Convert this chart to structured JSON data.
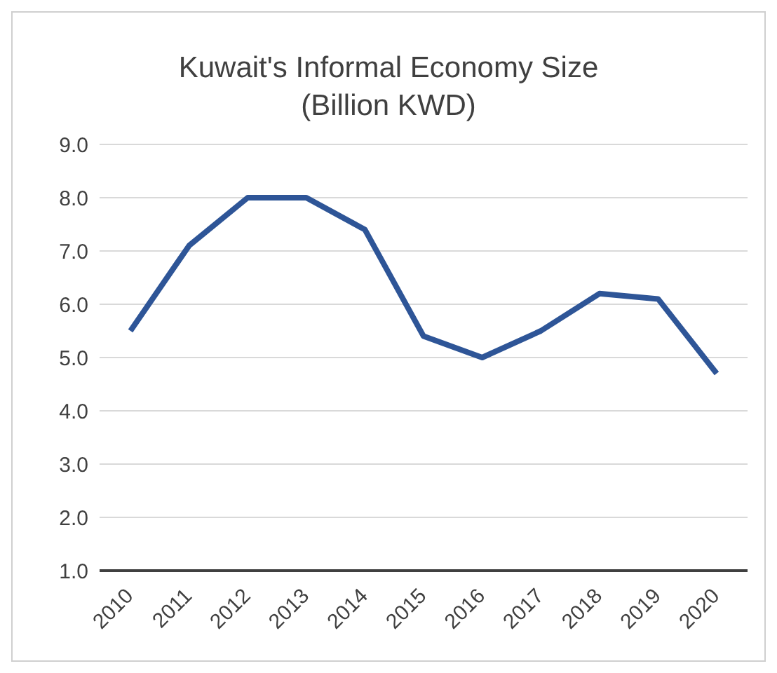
{
  "chart_data": {
    "type": "line",
    "title": "Kuwait's Informal Economy Size\n(Billion KWD)",
    "categories": [
      "2010",
      "2011",
      "2012",
      "2013",
      "2014",
      "2015",
      "2016",
      "2017",
      "2018",
      "2019",
      "2020"
    ],
    "series": [
      {
        "color": "#2e5597",
        "values": [
          5.5,
          7.1,
          8.0,
          8.0,
          7.4,
          5.4,
          5.0,
          5.5,
          6.2,
          6.1,
          4.7
        ]
      }
    ],
    "ylim": [
      1,
      9
    ],
    "yticks": [
      {
        "value": 1,
        "label": "1.0"
      },
      {
        "value": 2,
        "label": "2.0"
      },
      {
        "value": 3,
        "label": "3.0"
      },
      {
        "value": 4,
        "label": "4.0"
      },
      {
        "value": 5,
        "label": "5.0"
      },
      {
        "value": 6,
        "label": "6.0"
      },
      {
        "value": 7,
        "label": "7.0"
      },
      {
        "value": 8,
        "label": "8.0"
      },
      {
        "value": 9,
        "label": "9.0"
      }
    ],
    "grid": "y",
    "legend": false,
    "marker": "none",
    "line_style": "solid"
  }
}
